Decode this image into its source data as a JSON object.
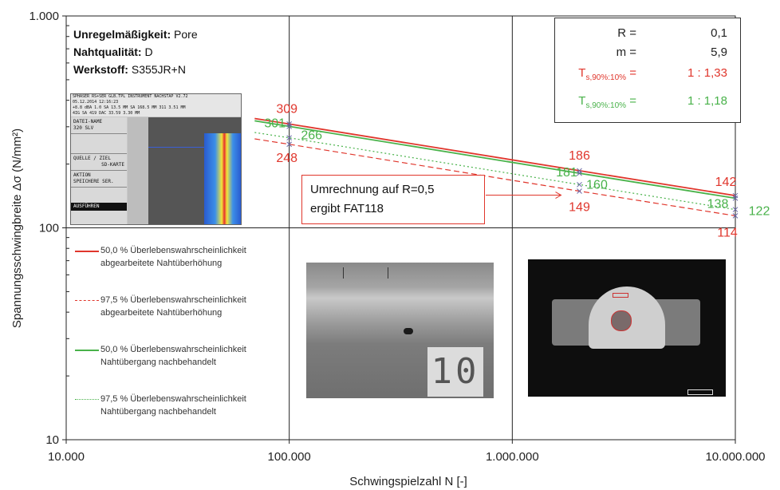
{
  "chart_data": {
    "type": "line",
    "xlabel": "Schwingspielzahl N [-]",
    "ylabel": "Spannungsschwingbreite Δσ (N/mm²)",
    "x_scale": "log",
    "y_scale": "log",
    "xlim": [
      10000,
      10000000
    ],
    "ylim": [
      10,
      1000
    ],
    "x_ticks": [
      10000,
      100000,
      1000000,
      10000000
    ],
    "x_tick_labels": [
      "10.000",
      "100.000",
      "1.000.000",
      "10.000.000"
    ],
    "y_ticks": [
      10,
      100,
      1000
    ],
    "y_tick_labels": [
      "10",
      "100",
      "1.000"
    ],
    "grid": true,
    "series": [
      {
        "name": "50,0 % Überlebenswahrscheinlichkeit abgearbeitete Nahtüberhöhung",
        "color": "#e0362c",
        "dash": "solid",
        "x": [
          70000,
          100000,
          2000000,
          10000000
        ],
        "y": [
          328,
          309,
          186,
          142
        ]
      },
      {
        "name": "97,5 % Überlebenswahrscheinlichkeit abgearbeitete Nahtüberhöhung",
        "color": "#e0362c",
        "dash": "dashed",
        "x": [
          70000,
          100000,
          2000000,
          10000000
        ],
        "y": [
          263,
          248,
          149,
          114
        ]
      },
      {
        "name": "50,0 % Überlebenswahrscheinlichkeit Nahtübergang nachbehandelt",
        "color": "#49b24a",
        "dash": "solid",
        "x": [
          70000,
          100000,
          2000000,
          10000000
        ],
        "y": [
          320,
          301,
          181,
          138
        ]
      },
      {
        "name": "97,5 % Überlebenswahrscheinlichkeit Nahtübergang nachbehandelt",
        "color": "#49b24a",
        "dash": "dotted",
        "x": [
          70000,
          100000,
          2000000,
          10000000
        ],
        "y": [
          282,
          266,
          160,
          122
        ]
      }
    ],
    "point_labels": [
      {
        "text": "309",
        "x": 100000,
        "y": 309,
        "color": "#e0362c"
      },
      {
        "text": "248",
        "x": 100000,
        "y": 248,
        "color": "#e0362c"
      },
      {
        "text": "301",
        "x": 100000,
        "y": 301,
        "color": "#49b24a"
      },
      {
        "text": "266",
        "x": 100000,
        "y": 266,
        "color": "#49b24a"
      },
      {
        "text": "186",
        "x": 2000000,
        "y": 186,
        "color": "#e0362c"
      },
      {
        "text": "149",
        "x": 2000000,
        "y": 149,
        "color": "#e0362c"
      },
      {
        "text": "181",
        "x": 2000000,
        "y": 181,
        "color": "#49b24a"
      },
      {
        "text": "160",
        "x": 2000000,
        "y": 160,
        "color": "#49b24a"
      },
      {
        "text": "142",
        "x": 10000000,
        "y": 142,
        "color": "#e0362c"
      },
      {
        "text": "114",
        "x": 10000000,
        "y": 114,
        "color": "#e0362c"
      },
      {
        "text": "138",
        "x": 10000000,
        "y": 138,
        "color": "#49b24a"
      },
      {
        "text": "122",
        "x": 10000000,
        "y": 122,
        "color": "#49b24a"
      }
    ]
  },
  "info": {
    "irregularity_key": "Unregelmäßigkeit:",
    "irregularity_val": "Pore",
    "quality_key": "Nahtqualität:",
    "quality_val": "D",
    "material_key": "Werkstoff:",
    "material_val": "S355JR+N"
  },
  "stats": {
    "r_key": "R =",
    "r_val": "0,1",
    "m_key": "m =",
    "m_val": "5,9",
    "ts_red_main": "T",
    "ts_red_sub": "s,90%:10%",
    "ts_red_eq": " =",
    "ts_red_val": "1 : 1,33",
    "ts_green_main": "T",
    "ts_green_sub": "s,90%:10%",
    "ts_green_eq": " =",
    "ts_green_val": "1 : 1,18"
  },
  "note": {
    "line1": "Umrechnung auf R=0,5",
    "line2": "ergibt FAT118"
  },
  "legend": [
    {
      "line1": "50,0 % Überlebenswahrscheinlichkeit",
      "line2": "abgearbeitete Nahtüberhöhung",
      "color": "#e0362c",
      "style": "solid"
    },
    {
      "line1": "97,5 % Überlebenswahrscheinlichkeit",
      "line2": "abgearbeitete Nahtüberhöhung",
      "color": "#e0362c",
      "style": "dashed"
    },
    {
      "line1": "50,0 % Überlebenswahrscheinlichkeit",
      "line2": "Nahtübergang nachbehandelt",
      "color": "#49b24a",
      "style": "solid"
    },
    {
      "line1": "97,5 % Überlebenswahrscheinlichkeit",
      "line2": "Nahtübergang nachbehandelt",
      "color": "#49b24a",
      "style": "dotted"
    }
  ],
  "ut_screen": {
    "header_row1": "SPHASER RS+SER GLB.TPL        INSTRUMENT NACHSTAP      V2.72",
    "header_row2": "05.12.2014  12:16:23",
    "header_row3": "+8.8 dBA  1.0 SA  13.5 MM  SA  168.5 MM  311   3.51 MM",
    "header_row4": "                 4IG  SA   419   DAC   33.59     3.30 MM",
    "side_item1": "DATEI-NAME",
    "side_item1b": "320 SLV",
    "side_item2": "QUELLE / ZIEL",
    "side_item2b": "SD-KARTE",
    "side_item3": "AKTION",
    "side_item3b": "SPEICHERE SER.",
    "side_btn": "AUSFÜHREN"
  },
  "xray_tag": "10"
}
